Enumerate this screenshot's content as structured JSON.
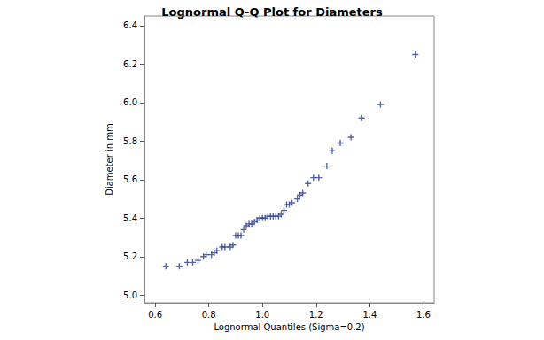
{
  "chart_data": {
    "type": "scatter",
    "title": "Lognormal Q-Q Plot for Diameters",
    "x_label": "Lognormal Quantiles (Sigma=0.2)",
    "y_label": "Diameter in mm",
    "x": [
      0.64,
      0.69,
      0.72,
      0.74,
      0.76,
      0.78,
      0.79,
      0.81,
      0.82,
      0.83,
      0.85,
      0.86,
      0.88,
      0.89,
      0.9,
      0.91,
      0.92,
      0.93,
      0.94,
      0.95,
      0.96,
      0.97,
      0.98,
      0.99,
      1.0,
      1.01,
      1.02,
      1.03,
      1.04,
      1.05,
      1.06,
      1.07,
      1.08,
      1.09,
      1.1,
      1.11,
      1.13,
      1.14,
      1.15,
      1.17,
      1.19,
      1.21,
      1.24,
      1.26,
      1.29,
      1.33,
      1.37,
      1.44,
      1.57
    ],
    "values": [
      5.15,
      5.15,
      5.17,
      5.17,
      5.18,
      5.2,
      5.21,
      5.21,
      5.22,
      5.23,
      5.25,
      5.25,
      5.25,
      5.26,
      5.31,
      5.31,
      5.31,
      5.34,
      5.36,
      5.37,
      5.37,
      5.38,
      5.39,
      5.4,
      5.4,
      5.4,
      5.41,
      5.41,
      5.41,
      5.41,
      5.41,
      5.42,
      5.44,
      5.47,
      5.47,
      5.48,
      5.5,
      5.52,
      5.53,
      5.58,
      5.61,
      5.61,
      5.67,
      5.75,
      5.79,
      5.82,
      5.92,
      5.99,
      6.25
    ],
    "color": "#2b3b8f",
    "marker": "plus",
    "grid": false,
    "xlim": [
      0.56,
      1.64
    ],
    "ylim": [
      4.96,
      6.45
    ],
    "xticks": [
      0.6,
      0.8,
      {
        "value": 1,
        "label": "1.0"
      },
      1.2,
      1.4,
      1.6
    ],
    "yticks": [
      {
        "value": 5,
        "label": "5.0"
      },
      5.2,
      5.4,
      5.6,
      5.8,
      {
        "value": 6,
        "label": "6.0"
      },
      6.2,
      6.4
    ]
  }
}
